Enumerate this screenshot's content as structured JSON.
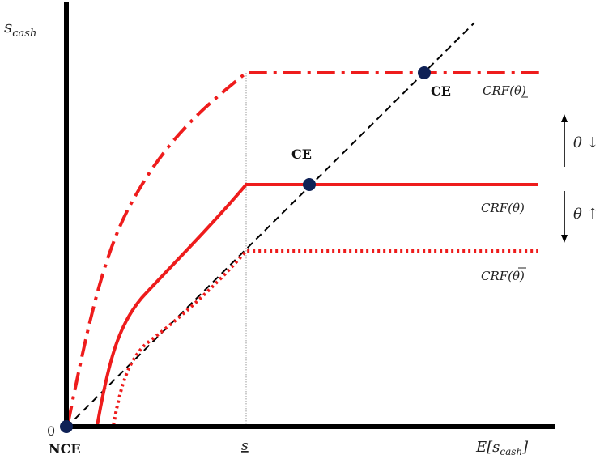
{
  "diagram": {
    "y_axis_label": "s",
    "y_axis_label_sub": "cash",
    "x_axis_label": "E[s",
    "x_axis_label_sub": "cash",
    "x_axis_label_end": "]",
    "origin_label": "0",
    "threshold_label": "s",
    "nce_label": "NCE",
    "ce_label_upper": "CE",
    "ce_label_middle": "CE",
    "curve_labels": {
      "low_theta": "CRF(θ)",
      "theta": "CRF(θ)",
      "high_theta": "CRF(θ)"
    },
    "arrow_up_label": "θ ↓",
    "arrow_down_label": "θ ↑",
    "colors": {
      "axis": "#000000",
      "curve": "#ee1c1c",
      "diagonal": "#000000",
      "dot": "#0f2156",
      "guide": "#888888"
    }
  }
}
